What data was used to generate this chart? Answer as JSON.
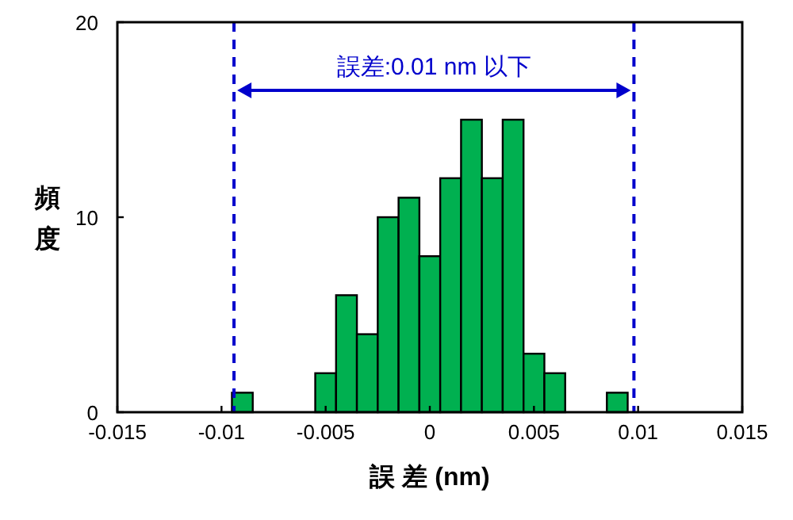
{
  "chart_data": {
    "type": "histogram",
    "xlabel": "誤 差 (nm)",
    "ylabel": "頻度",
    "bins": [
      -0.0095,
      -0.0085,
      -0.0075,
      -0.0065,
      -0.0055,
      -0.0045,
      -0.0035,
      -0.0025,
      -0.0015,
      -0.0005,
      0.0005,
      0.0015,
      0.0025,
      0.0035,
      0.0045,
      0.0055,
      0.0065,
      0.0075,
      0.0085,
      0.0095
    ],
    "values": [
      1,
      0,
      0,
      0,
      2,
      6,
      4,
      10,
      11,
      8,
      12,
      15,
      12,
      15,
      3,
      2,
      0,
      0,
      1
    ],
    "color": "#00b050",
    "xlim": [
      -0.015,
      0.015
    ],
    "xticks": [
      -0.015,
      -0.01,
      -0.005,
      0,
      0.005,
      0.01,
      0.015
    ],
    "ylim": [
      0,
      20
    ],
    "yticks": [
      0,
      10,
      20
    ],
    "ref_lines": [
      {
        "axis": "x",
        "value": -0.0094,
        "color": "#0000cc",
        "line_style": "dashed"
      },
      {
        "axis": "x",
        "value": 0.0098,
        "color": "#0000cc",
        "line_style": "dashed"
      }
    ],
    "annotations": [
      "誤差:0.01 nm 以下"
    ],
    "grid": false
  }
}
